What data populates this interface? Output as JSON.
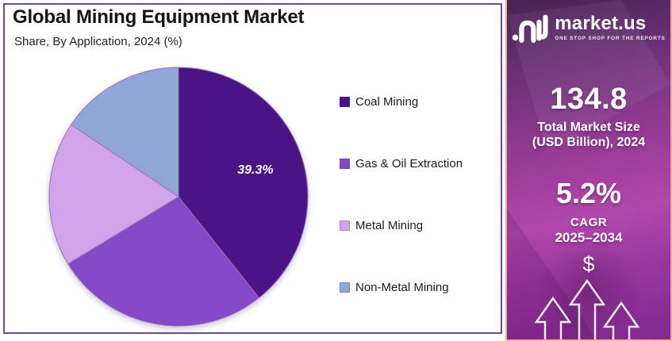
{
  "panel": {
    "title": "Global Mining Equipment Market",
    "subtitle": "Share, By Application, 2024 (%)"
  },
  "chart_data": {
    "type": "pie",
    "title": "Global Mining Equipment Market",
    "subtitle": "Share, By Application, 2024 (%)",
    "unit": "%",
    "legend_position": "right",
    "start_angle_deg": 0,
    "direction": "clockwise",
    "slices": [
      {
        "label": "Coal Mining",
        "value": 39.3,
        "color": "#4a1485",
        "data_label": "39.3%"
      },
      {
        "label": "Gas & Oil Extraction",
        "value": 27.0,
        "color": "#8349c7",
        "data_label": ""
      },
      {
        "label": "Metal Mining",
        "value": 18.1,
        "color": "#d2a3e9",
        "data_label": ""
      },
      {
        "label": "Non-Metal Mining",
        "value": 15.6,
        "color": "#90a6da",
        "data_label": ""
      }
    ],
    "note": "Only the 39.3% slice carries a data label in the figure; remaining values estimated from slice angles."
  },
  "sidebar": {
    "brand": {
      "name": "market.us",
      "tagline": "ONE STOP SHOP FOR THE REPORTS"
    },
    "market_size": {
      "value": "134.8",
      "label_line1": "Total Market Size",
      "label_line2": "(USD Billion), 2024"
    },
    "cagr": {
      "value": "5.2%",
      "label_line1": "CAGR",
      "label_line2": "2025–2034"
    },
    "dollar_symbol": "$"
  },
  "colors": {
    "panel_border": "#6d4b8a",
    "sidebar_border": "#eeab9e",
    "slice_stroke": "#9674b5",
    "slice_label": "#ffffff",
    "title_text": "#141414",
    "legend_text": "#1b1b1b",
    "sidebar_text": "#ffffff"
  }
}
